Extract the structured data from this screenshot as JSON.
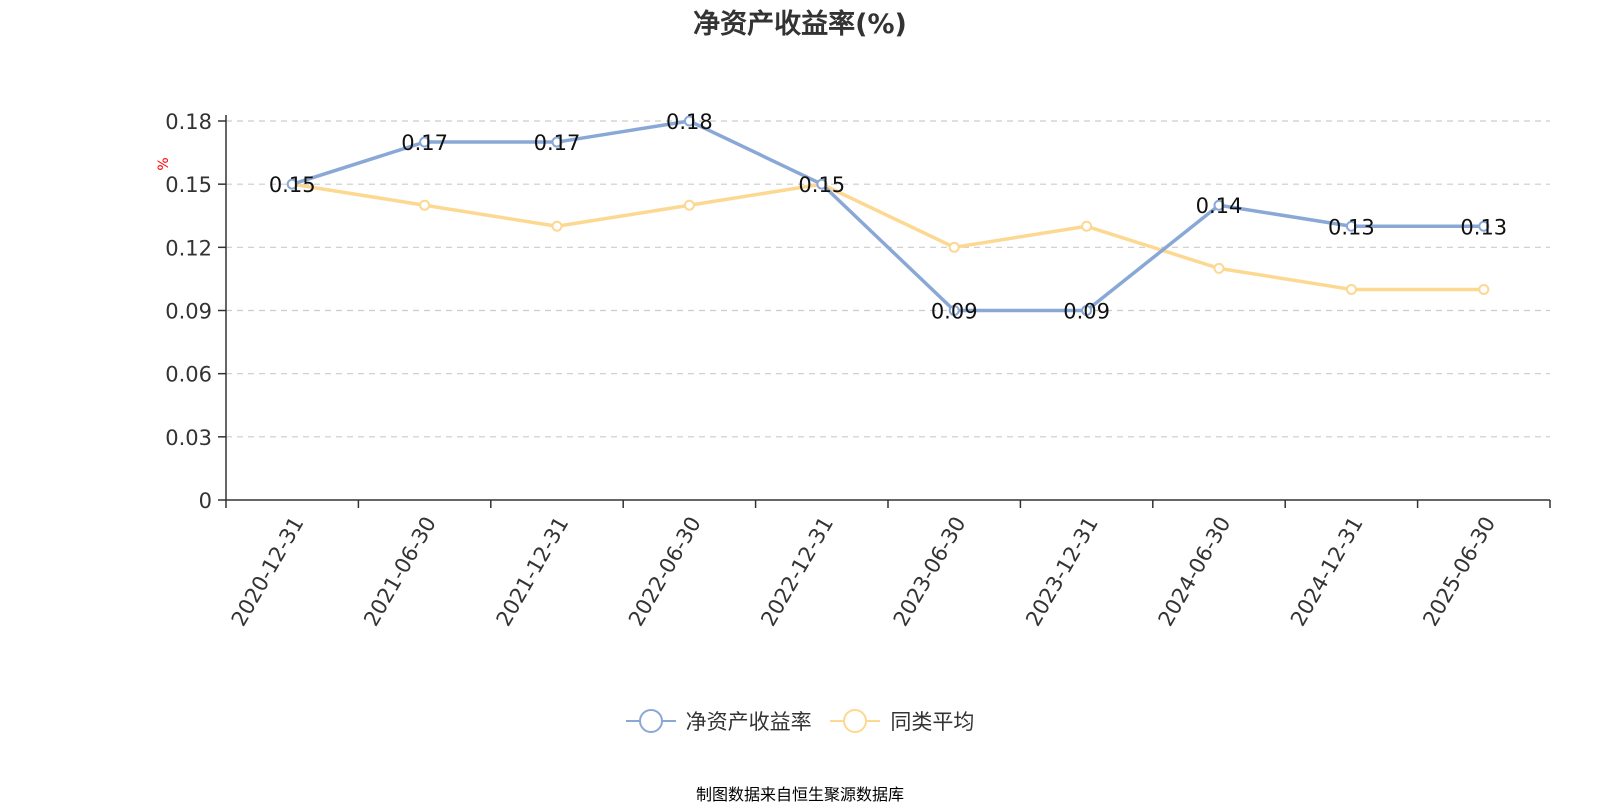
{
  "chart_data": {
    "type": "line",
    "title": "净资产收益率(%)",
    "ylabel": "%",
    "categories": [
      "2020-12-31",
      "2021-06-30",
      "2021-12-31",
      "2022-06-30",
      "2022-12-31",
      "2023-06-30",
      "2023-12-31",
      "2024-06-30",
      "2024-12-31",
      "2025-06-30"
    ],
    "ylim": [
      0,
      0.18
    ],
    "yticks": [
      "0",
      "0.03",
      "0.06",
      "0.09",
      "0.12",
      "0.15",
      "0.18"
    ],
    "series": [
      {
        "name": "净资产收益率",
        "color": "#8aa8d6",
        "values": [
          0.15,
          0.17,
          0.17,
          0.18,
          0.15,
          0.09,
          0.09,
          0.14,
          0.13,
          0.13
        ],
        "labels": [
          "0.15",
          "0.17",
          "0.17",
          "0.18",
          "0.15",
          "0.09",
          "0.09",
          "0.14",
          "0.13",
          "0.13"
        ]
      },
      {
        "name": "同类平均",
        "color": "#fcd891",
        "values": [
          0.15,
          0.14,
          0.13,
          0.14,
          0.15,
          0.12,
          0.13,
          0.11,
          0.1,
          0.1
        ]
      }
    ],
    "grid": true,
    "legend_position": "bottom"
  },
  "source_text": "制图数据来自恒生聚源数据库",
  "colors": {
    "axis": "#333333",
    "grid": "#cccccc",
    "ylabel": "#ff0000",
    "source": "#c8922a"
  }
}
